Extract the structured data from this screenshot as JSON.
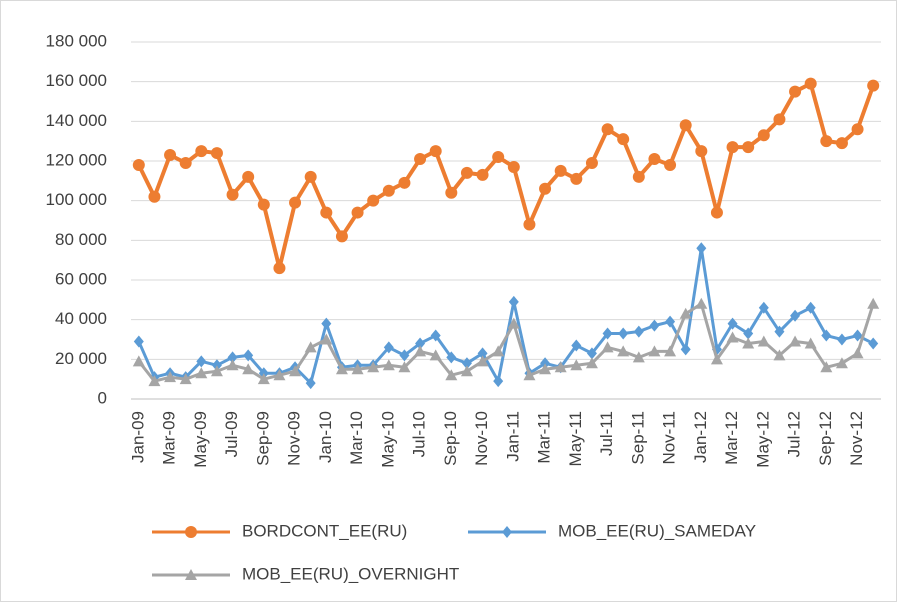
{
  "chart_data": {
    "type": "line",
    "categories": [
      "Jan-09",
      null,
      "Mar-09",
      null,
      "May-09",
      null,
      "Jul-09",
      null,
      "Sep-09",
      null,
      "Nov-09",
      null,
      "Jan-10",
      null,
      "Mar-10",
      null,
      "May-10",
      null,
      "Jul-10",
      null,
      "Sep-10",
      null,
      "Nov-10",
      null,
      "Jan-11",
      null,
      "Mar-11",
      null,
      "May-11",
      null,
      "Jul-11",
      null,
      "Sep-11",
      null,
      "Nov-11",
      null,
      "Jan-12",
      null,
      "Mar-12",
      null,
      "May-12",
      null,
      "Jul-12",
      null,
      "Sep-12",
      null,
      "Nov-12",
      null
    ],
    "series": [
      {
        "name": "BORDCONT_EE(RU)",
        "color": "#ed7d31",
        "marker": "circle",
        "values": [
          118000,
          102000,
          123000,
          119000,
          125000,
          124000,
          103000,
          112000,
          98000,
          66000,
          99000,
          112000,
          94000,
          82000,
          94000,
          100000,
          105000,
          109000,
          121000,
          125000,
          104000,
          114000,
          113000,
          122000,
          117000,
          88000,
          106000,
          115000,
          111000,
          119000,
          136000,
          131000,
          112000,
          121000,
          118000,
          138000,
          125000,
          94000,
          127000,
          127000,
          133000,
          141000,
          155000,
          159000,
          130000,
          129000,
          136000,
          158000
        ]
      },
      {
        "name": "MOB_EE(RU)_SAMEDAY",
        "color": "#5b9bd5",
        "marker": "diamond",
        "values": [
          29000,
          11000,
          13000,
          11000,
          19000,
          17000,
          21000,
          22000,
          13000,
          13000,
          16000,
          8000,
          38000,
          16000,
          17000,
          17000,
          26000,
          22000,
          28000,
          32000,
          21000,
          18000,
          23000,
          9000,
          49000,
          13000,
          18000,
          16000,
          27000,
          23000,
          33000,
          33000,
          34000,
          37000,
          39000,
          25000,
          76000,
          25000,
          38000,
          33000,
          46000,
          34000,
          42000,
          46000,
          32000,
          30000,
          32000,
          28000
        ]
      },
      {
        "name": "MOB_EE(RU)_OVERNIGHT",
        "color": "#a5a5a5",
        "marker": "triangle",
        "values": [
          19000,
          9000,
          11000,
          10000,
          13000,
          14000,
          17000,
          15000,
          10000,
          12000,
          14000,
          26000,
          30000,
          15000,
          15000,
          16000,
          17000,
          16000,
          24000,
          22000,
          12000,
          14000,
          19000,
          24000,
          38000,
          12000,
          15000,
          16000,
          17000,
          18000,
          26000,
          24000,
          21000,
          24000,
          24000,
          43000,
          48000,
          20000,
          31000,
          28000,
          29000,
          22000,
          29000,
          28000,
          16000,
          18000,
          23000,
          48000
        ]
      }
    ],
    "ylim": [
      0,
      180000
    ],
    "yticks": [
      0,
      {
        "value": 20000,
        "label": "20 000"
      },
      {
        "value": 40000,
        "label": "40 000"
      },
      {
        "value": 60000,
        "label": "60 000"
      },
      {
        "value": 80000,
        "label": "80 000"
      },
      {
        "value": 100000,
        "label": "100 000"
      },
      {
        "value": 120000,
        "label": "120 000"
      },
      {
        "value": 140000,
        "label": "140 000"
      },
      {
        "value": 160000,
        "label": "160 000"
      },
      {
        "value": 180000,
        "label": "180 000"
      }
    ],
    "grid": true,
    "legend": "bottom"
  }
}
